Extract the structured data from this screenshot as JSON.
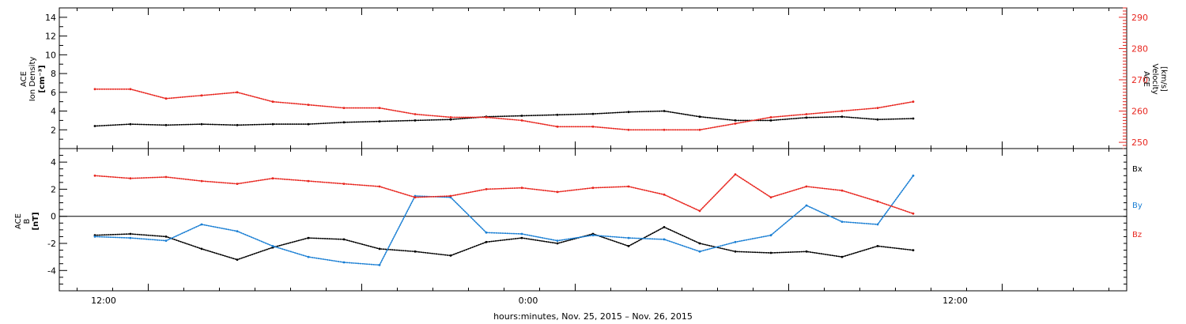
{
  "colors": {
    "black": "#000000",
    "red": "#e8261f",
    "blue": "#1a7fd4"
  },
  "xaxis": {
    "label": "hours:minutes, Nov. 25, 2015 – Nov. 26, 2015",
    "range_hours": [
      -14.5,
      15.5
    ],
    "major_ticks": [
      {
        "hours": -12,
        "label": "12:00"
      },
      {
        "hours": 0,
        "label": "0:00"
      },
      {
        "hours": 12,
        "label": "12:00"
      }
    ]
  },
  "chart_data": [
    {
      "type": "scatter",
      "panel": "top",
      "ylabel_left": {
        "line1": "ACE",
        "line2": "Ion Density",
        "line3": "[cm⁻³]"
      },
      "ylabel_right": {
        "line1": "ACE",
        "line2": "Velocity",
        "line3": "[km/s]"
      },
      "ylim": [
        0,
        15
      ],
      "ylim_right": [
        248,
        293
      ],
      "yticks_left": [
        2,
        4,
        6,
        8,
        10,
        12,
        14
      ],
      "yticks_right": [
        250,
        260,
        270,
        280,
        290
      ],
      "series": [
        {
          "axis": "left",
          "color": "#000000",
          "x": [
            -13.5,
            -12.5,
            -11.5,
            -10.5,
            -9.5,
            -8.5,
            -7.5,
            -6.5,
            -5.5,
            -4.5,
            -3.5,
            -2.5,
            -1.5,
            -0.5,
            0.5,
            1.5,
            2.5,
            3.5,
            4.5,
            5.5,
            6.5,
            7.5,
            8.5,
            9.5
          ],
          "y": [
            2.4,
            2.6,
            2.5,
            2.6,
            2.5,
            2.6,
            2.6,
            2.8,
            2.9,
            3.0,
            3.1,
            3.4,
            3.5,
            3.6,
            3.7,
            3.9,
            4.0,
            3.4,
            3.0,
            3.0,
            3.3,
            3.4,
            3.1,
            3.2
          ]
        },
        {
          "axis": "right",
          "color": "#e8261f",
          "x": [
            -13.5,
            -12.5,
            -11.5,
            -10.5,
            -9.5,
            -8.5,
            -7.5,
            -6.5,
            -5.5,
            -4.5,
            -3.5,
            -2.5,
            -1.5,
            -0.5,
            0.5,
            1.5,
            2.5,
            3.5,
            4.5,
            5.5,
            6.5,
            7.5,
            8.5,
            9.5
          ],
          "y": [
            267,
            267,
            264,
            265,
            266,
            263,
            262,
            261,
            261,
            259,
            258,
            258,
            257,
            255,
            255,
            254,
            254,
            254,
            256,
            258,
            259,
            260,
            261,
            263
          ]
        }
      ]
    },
    {
      "type": "scatter",
      "panel": "bottom",
      "ylabel_left": {
        "line1": "ACE",
        "line2": "B",
        "line3": "[nT]"
      },
      "ylim": [
        -5.5,
        5
      ],
      "yticks_left": [
        -4,
        -2,
        0,
        2,
        4
      ],
      "zero_line": true,
      "legend": [
        {
          "label": "Bx",
          "color": "#000000"
        },
        {
          "label": "By",
          "color": "#1a7fd4"
        },
        {
          "label": "Bz",
          "color": "#e8261f"
        }
      ],
      "series": [
        {
          "name": "Bx",
          "color": "#000000",
          "x": [
            -13.5,
            -12.5,
            -11.5,
            -10.5,
            -9.5,
            -8.5,
            -7.5,
            -6.5,
            -5.5,
            -4.5,
            -3.5,
            -2.5,
            -1.5,
            -0.5,
            0.5,
            1.5,
            2.5,
            3.5,
            4.5,
            5.5,
            6.5,
            7.5,
            8.5,
            9.5
          ],
          "y": [
            -1.4,
            -1.3,
            -1.5,
            -2.4,
            -3.2,
            -2.3,
            -1.6,
            -1.7,
            -2.4,
            -2.6,
            -2.9,
            -1.9,
            -1.6,
            -2.0,
            -1.3,
            -2.2,
            -0.8,
            -2.0,
            -2.6,
            -2.7,
            -2.6,
            -3.0,
            -2.2,
            -2.5
          ]
        },
        {
          "name": "By",
          "color": "#1a7fd4",
          "x": [
            -13.5,
            -12.5,
            -11.5,
            -10.5,
            -9.5,
            -8.5,
            -7.5,
            -6.5,
            -5.5,
            -4.5,
            -3.5,
            -2.5,
            -1.5,
            -0.5,
            0.5,
            1.5,
            2.5,
            3.5,
            4.5,
            5.5,
            6.5,
            7.5,
            8.5,
            9.5
          ],
          "y": [
            -1.5,
            -1.6,
            -1.8,
            -0.6,
            -1.1,
            -2.2,
            -3.0,
            -3.4,
            -3.6,
            1.5,
            1.4,
            -1.2,
            -1.3,
            -1.8,
            -1.4,
            -1.6,
            -1.7,
            -2.6,
            -1.9,
            -1.4,
            0.8,
            -0.4,
            -0.6,
            3.0
          ]
        },
        {
          "name": "Bz",
          "color": "#e8261f",
          "x": [
            -13.5,
            -12.5,
            -11.5,
            -10.5,
            -9.5,
            -8.5,
            -7.5,
            -6.5,
            -5.5,
            -4.5,
            -3.5,
            -2.5,
            -1.5,
            -0.5,
            0.5,
            1.5,
            2.5,
            3.5,
            4.5,
            5.5,
            6.5,
            7.5,
            8.5,
            9.5
          ],
          "y": [
            3.0,
            2.8,
            2.9,
            2.6,
            2.4,
            2.8,
            2.6,
            2.4,
            2.2,
            1.4,
            1.5,
            2.0,
            2.1,
            1.8,
            2.1,
            2.2,
            1.6,
            0.4,
            3.1,
            1.4,
            2.2,
            1.9,
            1.1,
            0.2
          ]
        }
      ]
    }
  ]
}
